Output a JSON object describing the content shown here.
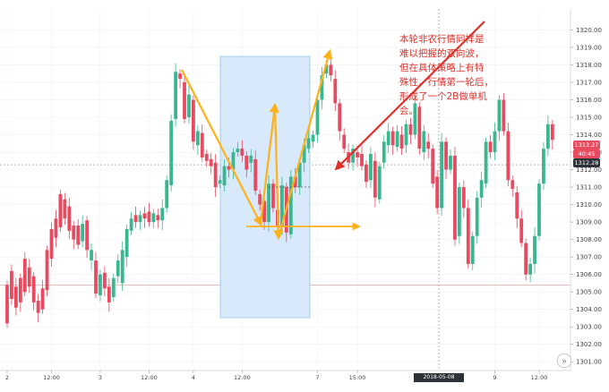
{
  "chart_data": {
    "type": "candlestick",
    "y_axis": {
      "min": 1300.5,
      "max": 1321.2,
      "ticks": [
        "1301.00",
        "1302.00",
        "1303.00",
        "1304.00",
        "1305.00",
        "1306.00",
        "1307.00",
        "1308.00",
        "1309.00",
        "1310.00",
        "1311.00",
        "1312.00",
        "1313.00",
        "1314.00",
        "1315.00",
        "1316.00",
        "1317.00",
        "1318.00",
        "1319.00",
        "1320.00"
      ]
    },
    "x_axis": {
      "ticks": [
        {
          "label": "2",
          "i": 0
        },
        {
          "label": "12:00",
          "i": 10
        },
        {
          "label": "3",
          "i": 21
        },
        {
          "label": "12:00",
          "i": 32
        },
        {
          "label": "4",
          "i": 42
        },
        {
          "label": "12:00",
          "i": 53
        },
        {
          "label": "7",
          "i": 70
        },
        {
          "label": "15:00",
          "i": 79
        },
        {
          "label": "9",
          "i": 110
        },
        {
          "label": "12:00",
          "i": 120
        }
      ]
    },
    "candles": [
      [
        1305.4,
        1303.2
      ],
      [
        1306.2,
        1304.6
      ],
      [
        1305.3,
        1304.1
      ],
      [
        1305.8,
        1304.4
      ],
      [
        1306.9,
        1305.0
      ],
      [
        1306.4,
        1305.3
      ],
      [
        1305.9,
        1304.4
      ],
      [
        1304.5,
        1303.8
      ],
      [
        1305.2,
        1304.0
      ],
      [
        1307.4,
        1305.1
      ],
      [
        1308.6,
        1306.9
      ],
      [
        1309.2,
        1308.1
      ],
      [
        1310.6,
        1308.7
      ],
      [
        1310.3,
        1309.2
      ],
      [
        1309.9,
        1308.5
      ],
      [
        1308.8,
        1308.0
      ],
      [
        1308.8,
        1307.7
      ],
      [
        1307.9,
        1308.9
      ],
      [
        1309.1,
        1307.4
      ],
      [
        1306.8,
        1307.4
      ],
      [
        1306.8,
        1304.9
      ],
      [
        1304.8,
        1306.0
      ],
      [
        1306.1,
        1305.2
      ],
      [
        1305.3,
        1304.4
      ],
      [
        1304.7,
        1305.8
      ],
      [
        1305.9,
        1306.8
      ],
      [
        1305.5,
        1307.4
      ],
      [
        1307.0,
        1308.6
      ],
      [
        1308.5,
        1309.2
      ],
      [
        1309.4,
        1309.0
      ],
      [
        1309.0,
        1309.4
      ],
      [
        1309.5,
        1309.2
      ],
      [
        1309.6,
        1309.0
      ],
      [
        1309.0,
        1309.5
      ],
      [
        1309.4,
        1309.1
      ],
      [
        1309.1,
        1309.8
      ],
      [
        1309.8,
        1311.4
      ],
      [
        1311.1,
        1314.8
      ],
      [
        1314.9,
        1317.6
      ],
      [
        1317.5,
        1317.2
      ],
      [
        1317.0,
        1314.9
      ],
      [
        1315.0,
        1316.3
      ],
      [
        1316.0,
        1313.6
      ],
      [
        1313.4,
        1314.2
      ],
      [
        1314.1,
        1312.7
      ],
      [
        1312.9,
        1312.5
      ],
      [
        1312.6,
        1312.2
      ],
      [
        1312.4,
        1311.0
      ],
      [
        1311.2,
        1311.4
      ],
      [
        1311.1,
        1312.2
      ],
      [
        1312.2,
        1312.0
      ],
      [
        1312.0,
        1313.0
      ],
      [
        1313.0,
        1313.2
      ],
      [
        1313.2,
        1312.8
      ],
      [
        1312.8,
        1312.0
      ],
      [
        1312.4,
        1312.8
      ],
      [
        1312.6,
        1310.8
      ],
      [
        1310.6,
        1310.0
      ],
      [
        1310.2,
        1309.0
      ],
      [
        1309.0,
        1311.2
      ],
      [
        1311.2,
        1309.8
      ],
      [
        1309.7,
        1308.7
      ],
      [
        1308.7,
        1311.1
      ],
      [
        1311.0,
        1308.4
      ],
      [
        1308.3,
        1311.6
      ],
      [
        1311.6,
        1311.0
      ],
      [
        1311.0,
        1312.4
      ],
      [
        1312.4,
        1313.4
      ],
      [
        1313.2,
        1313.8
      ],
      [
        1313.6,
        1314.0
      ],
      [
        1314.0,
        1316.0
      ],
      [
        1316.0,
        1317.4
      ],
      [
        1317.5,
        1318.0
      ],
      [
        1318.0,
        1317.4
      ],
      [
        1317.2,
        1315.8
      ],
      [
        1315.8,
        1314.2
      ],
      [
        1314.0,
        1313.2
      ],
      [
        1313.0,
        1312.4
      ],
      [
        1312.4,
        1313.2
      ],
      [
        1313.0,
        1312.7
      ],
      [
        1312.9,
        1312.2
      ],
      [
        1312.3,
        1311.3
      ],
      [
        1311.4,
        1312.9
      ],
      [
        1312.5,
        1310.4
      ],
      [
        1310.3,
        1312.2
      ],
      [
        1312.4,
        1313.6
      ],
      [
        1313.4,
        1314.2
      ],
      [
        1314.2,
        1313.4
      ],
      [
        1313.3,
        1314.2
      ],
      [
        1314.0,
        1313.2
      ],
      [
        1313.4,
        1314.6
      ],
      [
        1314.6,
        1314.0
      ],
      [
        1314.0,
        1315.8
      ],
      [
        1315.6,
        1313.2
      ],
      [
        1313.0,
        1314.2
      ],
      [
        1313.6,
        1313.2
      ],
      [
        1313.2,
        1311.2
      ],
      [
        1311.6,
        1309.8
      ],
      [
        1309.8,
        1313.6
      ],
      [
        1313.6,
        1312.0
      ],
      [
        1312.0,
        1312.8
      ],
      [
        1312.8,
        1308.0
      ],
      [
        1308.2,
        1311.0
      ],
      [
        1311.0,
        1309.8
      ],
      [
        1309.8,
        1306.6
      ],
      [
        1306.6,
        1308.2
      ],
      [
        1308.2,
        1310.4
      ],
      [
        1310.4,
        1311.4
      ],
      [
        1311.2,
        1313.6
      ],
      [
        1313.6,
        1313.0
      ],
      [
        1313.0,
        1314.2
      ],
      [
        1314.2,
        1316.0
      ],
      [
        1316.0,
        1314.2
      ],
      [
        1314.2,
        1311.4
      ],
      [
        1311.4,
        1310.9
      ],
      [
        1310.7,
        1309.2
      ],
      [
        1309.2,
        1307.8
      ],
      [
        1307.8,
        1306.0
      ],
      [
        1306.0,
        1306.6
      ],
      [
        1306.6,
        1308.2
      ],
      [
        1308.2,
        1311.2
      ],
      [
        1311.2,
        1313.2
      ],
      [
        1313.2,
        1314.6
      ],
      [
        1314.6,
        1313.7
      ]
    ],
    "annotation": "本轮非农行情同样是\n难以把握的双向波，\n但在具体策略上有特\n殊性，行情第一轮后，\n形成了一个2B做单机会。",
    "price_labels": [
      "1313.27",
      "40:45",
      "1312.28"
    ],
    "crosshair_time": "2018-05-08 14:00:00",
    "horizontal_line": 1305.4,
    "colors": {
      "up": "#3bb78f",
      "down": "#e84a5f",
      "arrow_orange": "#ffb11b",
      "arrow_red": "#e0302a",
      "highlight": "#d7e9fb"
    }
  }
}
